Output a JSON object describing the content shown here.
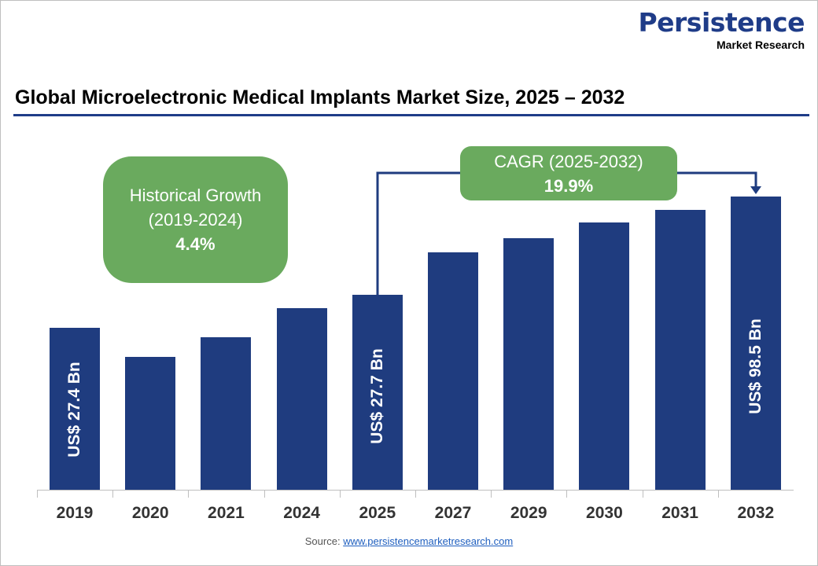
{
  "logo": {
    "line1": "Persistence",
    "line2": "Market Research"
  },
  "title": "Global Microelectronic Medical Implants Market Size, 2025 – 2032",
  "historical": {
    "label1": "Historical Growth",
    "label2": "(2019-2024)",
    "value": "4.4%"
  },
  "cagr": {
    "label": "CAGR (2025-2032)",
    "value": "19.9%"
  },
  "source": {
    "prefix": "Source: ",
    "link": "www.persistencemarketresearch.com"
  },
  "colors": {
    "bar": "#1f3c7f",
    "bubble": "#6aaa5e",
    "title_rule": "#1f3c88"
  },
  "chart_data": {
    "type": "bar",
    "title": "Global Microelectronic Medical Implants Market Size, 2025 – 2032",
    "categories": [
      "2019",
      "2020",
      "2021",
      "2024",
      "2025",
      "2027",
      "2029",
      "2030",
      "2031",
      "2032"
    ],
    "values": [
      27.4,
      null,
      null,
      null,
      27.7,
      null,
      null,
      null,
      null,
      98.5
    ],
    "data_labels": [
      "US$ 27.4 Bn",
      "",
      "",
      "",
      "US$ 27.7 Bn",
      "",
      "",
      "",
      "",
      "US$ 98.5 Bn"
    ],
    "unit": "US$ Bn",
    "grid": false,
    "legend": "none"
  }
}
